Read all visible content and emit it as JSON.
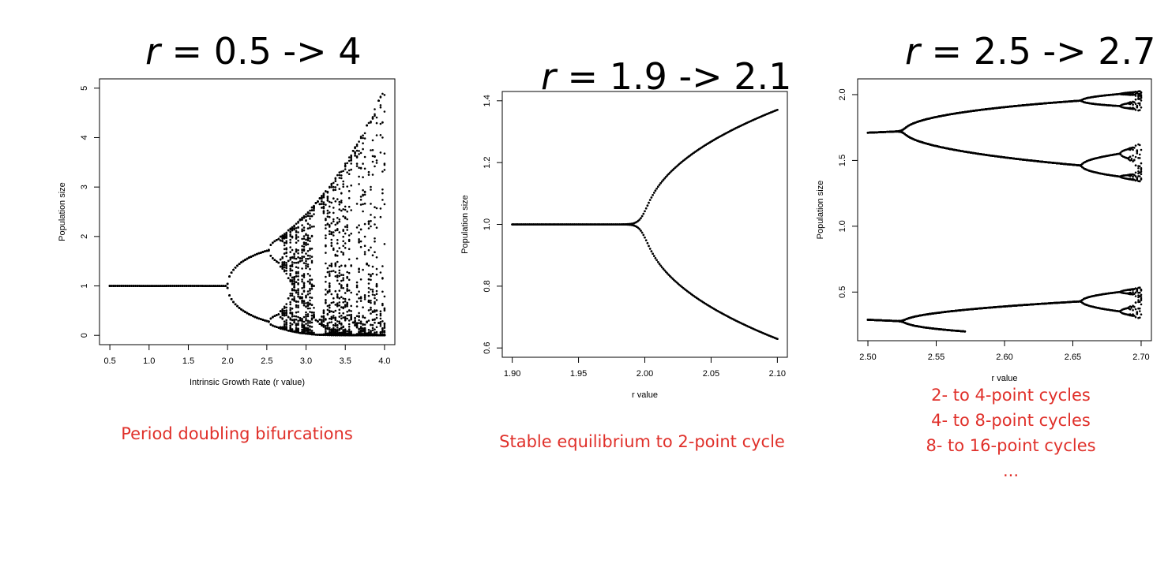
{
  "panels": [
    {
      "title_var": "r",
      "title_rest": " = 0.5 -> 4",
      "captions": [
        "Period doubling bifurcations"
      ]
    },
    {
      "title_var": "r",
      "title_rest": " = 1.9 -> 2.1",
      "captions": [
        "Stable equilibrium to 2-point cycle"
      ]
    },
    {
      "title_var": "r",
      "title_rest": " = 2.5 -> 2.7",
      "captions": [
        "2- to 4-point cycles",
        "4- to 8-point cycles",
        "8- to 16-point cycles",
        "..."
      ]
    }
  ],
  "colors": {
    "caption": "#e0302a",
    "points": "#000000"
  },
  "chart_data": [
    {
      "type": "scatter",
      "title": "",
      "xlabel": "Intrinsic Growth Rate (r value)",
      "ylabel": "Population size",
      "xlim": [
        0.5,
        4.0
      ],
      "ylim": [
        0,
        5
      ],
      "xticks": [
        "0.5",
        "1.0",
        "1.5",
        "2.0",
        "2.5",
        "3.0",
        "3.5",
        "4.0"
      ],
      "yticks": [
        "0",
        "1",
        "2",
        "3",
        "4",
        "5"
      ],
      "series": [
        {
          "kind": "logistic-bifurcation",
          "r_range": [
            0.5,
            4.0
          ],
          "r_step": 0.025,
          "points_per_r": 40
        }
      ]
    },
    {
      "type": "scatter",
      "title": "",
      "xlabel": "r value",
      "ylabel": "Population size",
      "xlim": [
        1.9,
        2.1
      ],
      "ylim": [
        0.6,
        1.4
      ],
      "xticks": [
        "1.90",
        "1.95",
        "2.00",
        "2.05",
        "2.10"
      ],
      "yticks": [
        "0.6",
        "0.8",
        "1.0",
        "1.2",
        "1.4"
      ],
      "series": [
        {
          "kind": "logistic-bifurcation",
          "r_range": [
            1.9,
            2.1
          ],
          "r_step": 0.001,
          "points_per_r": 4
        }
      ]
    },
    {
      "type": "scatter",
      "title": "",
      "xlabel": "r value",
      "ylabel": "Population size",
      "xlim": [
        2.5,
        2.7
      ],
      "ylim": [
        0.2,
        2.05
      ],
      "xticks": [
        "2.50",
        "2.55",
        "2.60",
        "2.65",
        "2.70"
      ],
      "yticks": [
        "0.5",
        "1.0",
        "1.5",
        "2.0"
      ],
      "series": [
        {
          "kind": "logistic-bifurcation",
          "r_range": [
            2.5,
            2.7
          ],
          "r_step": 0.001,
          "points_per_r": 32
        }
      ]
    }
  ]
}
